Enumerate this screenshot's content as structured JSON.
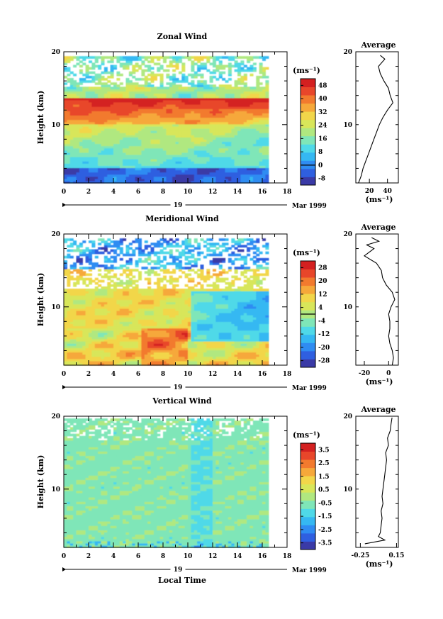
{
  "figure": {
    "date_label": "Mar 1999",
    "day_label": "19",
    "bottom_xlabel": "Local Time"
  },
  "colors": {
    "palette": [
      "#3a3aa6",
      "#2f5fe0",
      "#2f8cf2",
      "#35b8f2",
      "#4fd9e8",
      "#7fe6b8",
      "#b0e880",
      "#d8e65a",
      "#f2d64a",
      "#f6a83a",
      "#f27a2e",
      "#e8462a",
      "#d42020"
    ]
  },
  "chart_data": [
    {
      "type": "heatmap",
      "title": "Zonal Wind",
      "ylabel": "Height (km)",
      "xlim": [
        0,
        18
      ],
      "ylim": [
        2,
        20
      ],
      "xticks": [
        "0",
        "2",
        "4",
        "6",
        "8",
        "10",
        "12",
        "14",
        "16",
        "18"
      ],
      "yticks": [
        "10",
        "20"
      ],
      "data_x_range": [
        0,
        16.3
      ],
      "colorbar": {
        "unit": "(ms⁻¹)",
        "ticks": [
          "-8",
          "0",
          "8",
          "16",
          "24",
          "32",
          "40",
          "48"
        ],
        "min": -12,
        "max": 52,
        "field_levels": [
          -8,
          0,
          8,
          16,
          24,
          32,
          40,
          48
        ]
      },
      "profile": {
        "title": "Average",
        "unit": "(ms⁻¹)",
        "xticks": [
          "20",
          "40"
        ],
        "xlim": [
          5,
          52
        ],
        "heights": [
          2,
          3,
          4,
          5,
          6,
          7,
          8,
          9,
          10,
          11,
          12,
          13,
          14,
          15,
          16,
          17,
          18,
          19,
          19.5
        ],
        "values": [
          8,
          11,
          13,
          16,
          19,
          22,
          25,
          28,
          31,
          35,
          40,
          46,
          43,
          41,
          36,
          32,
          30,
          37,
          32
        ]
      }
    },
    {
      "type": "heatmap",
      "title": "Meridional Wind",
      "ylabel": "Height (km)",
      "xlim": [
        0,
        18
      ],
      "ylim": [
        2,
        20
      ],
      "xticks": [
        "0",
        "2",
        "4",
        "6",
        "8",
        "10",
        "12",
        "14",
        "16",
        "18"
      ],
      "yticks": [
        "10",
        "20"
      ],
      "data_x_range": [
        0,
        16.3
      ],
      "colorbar": {
        "unit": "(ms⁻¹)",
        "ticks": [
          "-28",
          "-20",
          "-12",
          "-4",
          "4",
          "12",
          "20",
          "28"
        ],
        "min": -32,
        "max": 32,
        "field_levels": [
          -28,
          -20,
          -12,
          -4,
          4,
          12,
          20,
          28
        ]
      },
      "profile": {
        "title": "Average",
        "unit": "(ms⁻¹)",
        "xticks": [
          "-20",
          "0"
        ],
        "xlim": [
          -27,
          8
        ],
        "heights": [
          2,
          3,
          4,
          5,
          6,
          7,
          8,
          9,
          10,
          11,
          12,
          13,
          14,
          15,
          16,
          17,
          18,
          18.5,
          19,
          19.5
        ],
        "values": [
          3,
          4,
          3,
          1,
          0,
          1,
          1,
          0,
          2,
          5,
          3,
          -2,
          -5,
          -6,
          -10,
          -20,
          -12,
          -18,
          -8,
          -14
        ]
      }
    },
    {
      "type": "heatmap",
      "title": "Vertical Wind",
      "ylabel": "Height (km)",
      "xlim": [
        0,
        18
      ],
      "ylim": [
        2,
        20
      ],
      "xticks": [
        "0",
        "2",
        "4",
        "6",
        "8",
        "10",
        "12",
        "14",
        "16",
        "18"
      ],
      "yticks": [
        "10",
        "20"
      ],
      "data_x_range": [
        0,
        16.3
      ],
      "colorbar": {
        "unit": "(ms⁻¹)",
        "ticks": [
          "-3.5",
          "-2.5",
          "-1.5",
          "-0.5",
          "0.5",
          "1.5",
          "2.5",
          "3.5"
        ],
        "min": -4,
        "max": 4,
        "field_levels": [
          -3.5,
          -2.5,
          -1.5,
          -0.5,
          0.5,
          1.5,
          2.5,
          3.5
        ]
      },
      "profile": {
        "title": "Average",
        "unit": "(ms⁻¹)",
        "xticks": [
          "-0.25",
          "0.15"
        ],
        "xlim": [
          -0.3,
          0.17
        ],
        "heights": [
          2.5,
          3,
          3.5,
          4,
          5,
          6,
          7,
          8,
          9,
          10,
          11,
          12,
          13,
          14,
          15,
          16,
          17,
          18,
          19,
          19.8
        ],
        "values": [
          -0.2,
          0.02,
          -0.05,
          -0.03,
          -0.02,
          -0.01,
          -0.02,
          0.0,
          -0.01,
          0.0,
          0.01,
          0.02,
          0.03,
          0.04,
          0.03,
          0.06,
          0.05,
          0.08,
          0.09,
          0.1
        ]
      }
    }
  ]
}
